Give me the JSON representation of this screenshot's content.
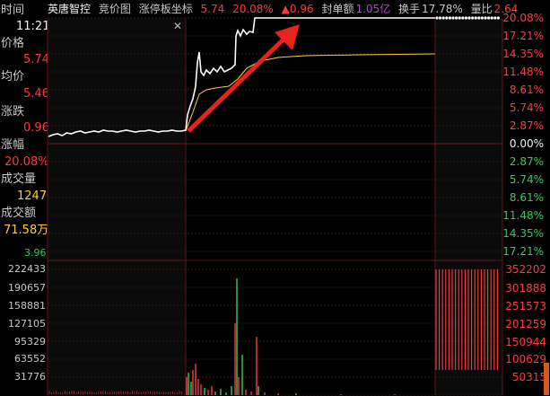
{
  "header": {
    "name": "英唐智控",
    "tabs": [
      "竞价图",
      "涨停板坐标"
    ],
    "price": "5.74",
    "pct": "20.08%",
    "change": "▲0.96",
    "seal_label": "封单额",
    "seal_value": "1.05亿",
    "turnover_label": "换手",
    "turnover_value": "17.78%",
    "ratio_label": "量比",
    "ratio_value": "2.64"
  },
  "left": {
    "time_label": "时间",
    "time_value": "11:21",
    "price_label": "价格",
    "price_value": "5.74",
    "avg_label": "均价",
    "avg_value": "5.46",
    "change_label": "涨跌",
    "change_value": "0.96",
    "pct_label": "涨幅",
    "pct_value": "20.08%",
    "vol_label": "成交量",
    "vol_value": "1247",
    "amount_label": "成交额",
    "amount_value": "71.58万",
    "bottom_price": "3.96"
  },
  "right_axis": {
    "up": [
      "20.08%",
      "17.21%",
      "14.35%",
      "11.48%",
      "8.61%",
      "5.74%",
      "2.87%"
    ],
    "zero": "0.00%",
    "down": [
      "2.87%",
      "5.74%",
      "8.61%",
      "11.48%",
      "14.35%",
      "17.21%"
    ]
  },
  "volume_axis_left": [
    "222433",
    "190657",
    "158881",
    "127105",
    "95329",
    "63552",
    "31776"
  ],
  "volume_axis_right": [
    "352202",
    "301888",
    "251573",
    "201259",
    "150944",
    "100629",
    "50315"
  ],
  "colors": {
    "up": "#ff3b3b",
    "down": "#33cc55",
    "price_line": "#ffffff",
    "avg_line": "#ffd23a",
    "arrow": "#e8231b",
    "grid": "#3a1010"
  }
}
